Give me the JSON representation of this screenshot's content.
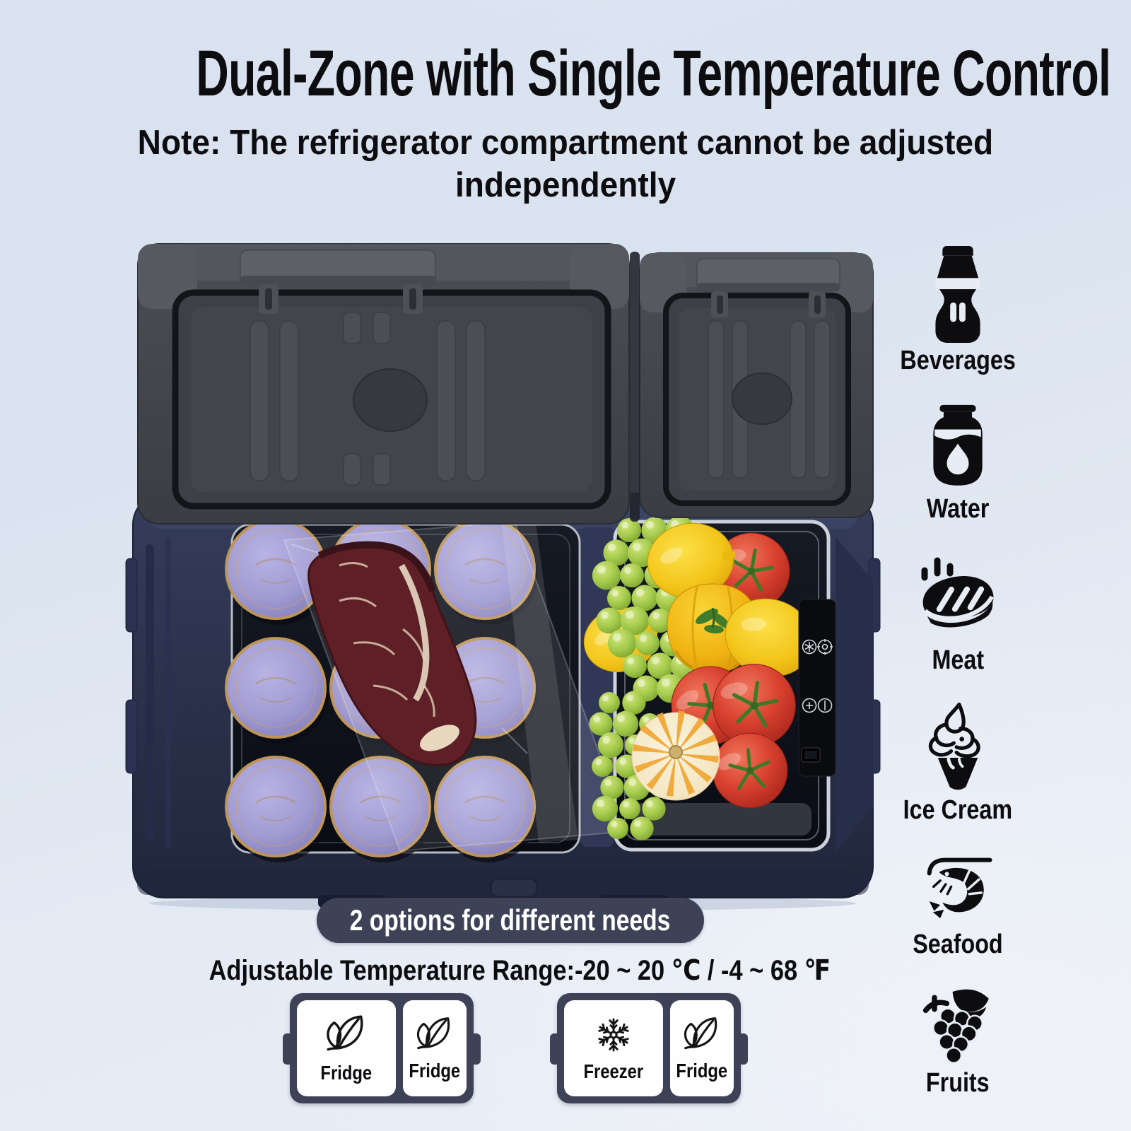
{
  "header": {
    "title": "Dual-Zone with Single Temperature Control",
    "note_line1": "Note: The refrigerator compartment cannot be adjusted",
    "note_line2": "independently"
  },
  "sidebar": {
    "items": [
      {
        "label": "Beverages",
        "icon": "soda-bottle-icon"
      },
      {
        "label": "Water",
        "icon": "water-jug-icon"
      },
      {
        "label": "Meat",
        "icon": "steak-icon"
      },
      {
        "label": "Ice Cream",
        "icon": "ice-cream-cone-icon"
      },
      {
        "label": "Seafood",
        "icon": "shrimp-icon"
      },
      {
        "label": "Fruits",
        "icon": "grapes-icon"
      }
    ]
  },
  "banner": {
    "label": "2 options for different needs"
  },
  "temperature_line": "Adjustable Temperature Range:-20 ~ 20 ℃ / -4 ~ 68 ℉",
  "options": [
    {
      "zones": [
        {
          "label": "Fridge",
          "icon": "leaf-icon"
        },
        {
          "label": "Fridge",
          "icon": "leaf-icon"
        }
      ]
    },
    {
      "zones": [
        {
          "label": "Freezer",
          "icon": "snowflake-icon"
        },
        {
          "label": "Fridge",
          "icon": "leaf-icon"
        }
      ]
    }
  ]
}
